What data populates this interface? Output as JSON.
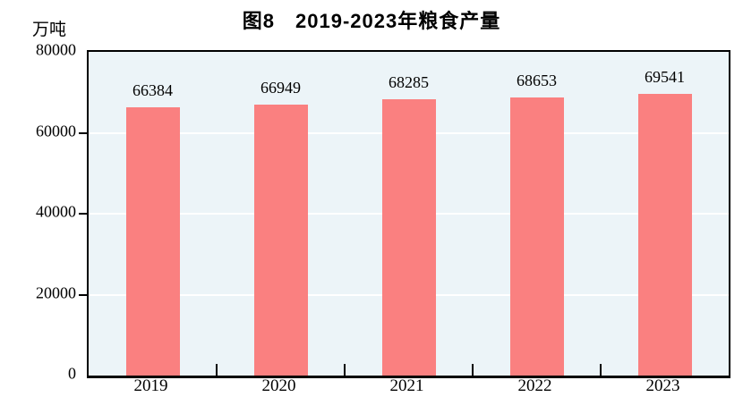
{
  "chart_data": {
    "type": "bar",
    "title": "图8　2019-2023年粮食产量",
    "xlabel": "",
    "ylabel": "万吨",
    "categories": [
      "2019",
      "2020",
      "2021",
      "2022",
      "2023"
    ],
    "values": [
      66384,
      66949,
      68285,
      68653,
      69541
    ],
    "ylim": [
      0,
      80000
    ],
    "yticks": [
      0,
      20000,
      40000,
      60000,
      80000
    ],
    "grid": "horizontal-white-gridlines",
    "legend_position": "none",
    "value_labels_shown": true,
    "colors": {
      "bar_fill": "#FA8080",
      "plot_background": "#ECF4F8",
      "gridline": "#FFFFFF",
      "axis_and_text": "#000000",
      "page_background": "#FFFFFF"
    }
  }
}
